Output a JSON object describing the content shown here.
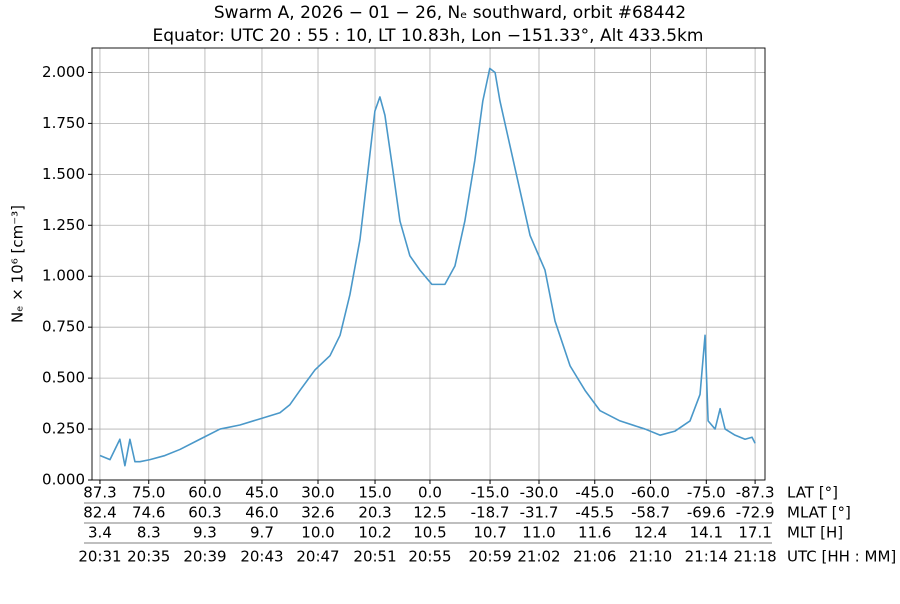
{
  "chart_data": {
    "type": "line",
    "title": "Swarm A,  2026 − 01 − 26,  Nₑ southward,  orbit #68442",
    "subtitle": "Equator:  UTC 20 : 55 : 10,  LT 10.83h,  Lon  −151.33°,  Alt 433.5km",
    "ylabel": "Nₑ × 10⁶ [cm⁻³]",
    "xlabel": "UTC [HH : MM]",
    "xlim": [
      1230.43,
      1278.7
    ],
    "ylim": [
      0,
      2.12
    ],
    "grid": true,
    "yticks": [
      {
        "value": 0,
        "label": "0.000"
      },
      {
        "value": 0.25,
        "label": "0.250"
      },
      {
        "value": 0.5,
        "label": "0.500"
      },
      {
        "value": 0.75,
        "label": "0.750"
      },
      {
        "value": 1,
        "label": "1.000"
      },
      {
        "value": 1.25,
        "label": "1.250"
      },
      {
        "value": 1.5,
        "label": "1.500"
      },
      {
        "value": 1.75,
        "label": "1.750"
      },
      {
        "value": 2,
        "label": "2.000"
      }
    ],
    "xticks": [
      {
        "value": 1231.0,
        "label": "20:31"
      },
      {
        "value": 1234.5,
        "label": "20:35"
      },
      {
        "value": 1238.53,
        "label": "20:39"
      },
      {
        "value": 1242.62,
        "label": "20:43"
      },
      {
        "value": 1246.64,
        "label": "20:47"
      },
      {
        "value": 1250.73,
        "label": "20:51"
      },
      {
        "value": 1254.67,
        "label": "20:55"
      },
      {
        "value": 1258.98,
        "label": "20:59"
      },
      {
        "value": 1262.49,
        "label": "21:02"
      },
      {
        "value": 1266.49,
        "label": "21:06"
      },
      {
        "value": 1270.49,
        "label": "21:10"
      },
      {
        "value": 1274.49,
        "label": "21:14"
      },
      {
        "value": 1277.99,
        "label": "21:18"
      }
    ],
    "xtick_rows": [
      {
        "name": "LAT [°]",
        "labels": [
          "87.3",
          "75.0",
          "60.0",
          "45.0",
          "30.0",
          "15.0",
          "0.0",
          "-15.0",
          "-30.0",
          "-45.0",
          "-60.0",
          "-75.0",
          "-87.3"
        ]
      },
      {
        "name": "MLAT [°]",
        "labels": [
          "82.4",
          "74.6",
          "60.3",
          "46.0",
          "32.6",
          "20.3",
          "12.5",
          "-18.7",
          "-31.7",
          "-45.5",
          "-58.7",
          "-69.6",
          "-72.9"
        ]
      },
      {
        "name": "MLT [H]",
        "labels": [
          "3.4",
          "8.3",
          "9.3",
          "9.7",
          "10.0",
          "10.2",
          "10.5",
          "10.7",
          "11.0",
          "11.6",
          "12.4",
          "14.1",
          "17.1"
        ]
      }
    ],
    "series": [
      {
        "color": "#4a98c9",
        "x": [
          1231.0,
          1231.72,
          1232.43,
          1232.79,
          1233.15,
          1233.51,
          1233.87,
          1234.59,
          1235.66,
          1236.74,
          1238.17,
          1239.61,
          1241.04,
          1242.48,
          1243.91,
          1244.63,
          1245.35,
          1246.42,
          1247.5,
          1248.22,
          1248.93,
          1249.65,
          1250.23,
          1250.72,
          1251.08,
          1251.44,
          1252.01,
          1252.52,
          1253.23,
          1253.95,
          1254.81,
          1255.74,
          1256.46,
          1257.17,
          1257.89,
          1258.46,
          1258.96,
          1259.34,
          1259.69,
          1260.41,
          1261.13,
          1261.85,
          1262.92,
          1263.64,
          1264.72,
          1265.79,
          1266.87,
          1268.3,
          1270.1,
          1271.17,
          1272.25,
          1273.32,
          1274.04,
          1274.4,
          1274.62,
          1275.12,
          1275.48,
          1275.84,
          1276.55,
          1277.27,
          1277.77,
          1277.99
        ],
        "values": [
          0.12,
          0.1,
          0.2,
          0.07,
          0.2,
          0.09,
          0.09,
          0.1,
          0.12,
          0.15,
          0.2,
          0.25,
          0.27,
          0.3,
          0.33,
          0.37,
          0.44,
          0.54,
          0.61,
          0.71,
          0.91,
          1.18,
          1.52,
          1.81,
          1.88,
          1.79,
          1.52,
          1.27,
          1.1,
          1.03,
          0.96,
          0.96,
          1.05,
          1.27,
          1.57,
          1.86,
          2.02,
          2.0,
          1.86,
          1.64,
          1.42,
          1.2,
          1.03,
          0.78,
          0.56,
          0.44,
          0.34,
          0.29,
          0.25,
          0.22,
          0.24,
          0.29,
          0.42,
          0.71,
          0.29,
          0.25,
          0.35,
          0.25,
          0.22,
          0.2,
          0.21,
          0.18
        ]
      }
    ]
  }
}
